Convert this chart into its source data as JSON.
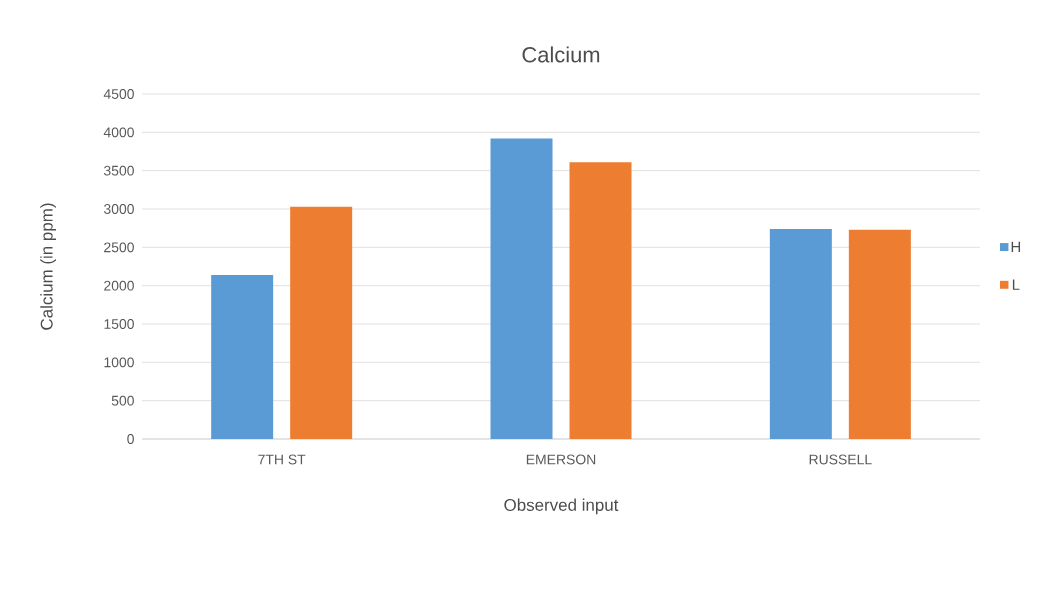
{
  "chart_data": {
    "type": "bar",
    "title": "Calcium",
    "xlabel": "Observed input",
    "ylabel": "Calcium (in ppm)",
    "categories": [
      "7TH ST",
      "EMERSON",
      "RUSSELL"
    ],
    "series": [
      {
        "name": "H",
        "color": "#5b9bd5",
        "values": [
          2140,
          3920,
          2740
        ]
      },
      {
        "name": "L",
        "color": "#ed7d31",
        "values": [
          3030,
          3610,
          2730
        ]
      }
    ],
    "ylim": [
      0,
      4500
    ],
    "yticks": [
      0,
      500,
      1000,
      1500,
      2000,
      2500,
      3000,
      3500,
      4000,
      4500
    ],
    "grid": "y",
    "legend": "right"
  }
}
